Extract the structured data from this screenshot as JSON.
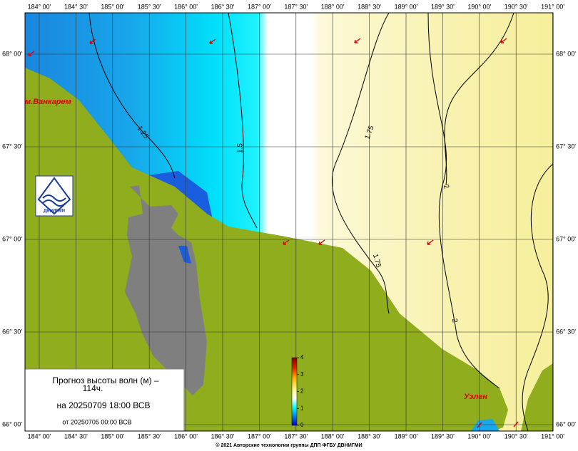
{
  "map": {
    "lon_labels": [
      "184° 00'",
      "184° 30'",
      "185° 00'",
      "185° 30'",
      "186° 00'",
      "186° 30'",
      "187° 00'",
      "187° 30'",
      "188° 00'",
      "188° 30'",
      "189° 00'",
      "189° 30'",
      "190° 00'",
      "190° 30'",
      "191° 00'"
    ],
    "lat_labels": [
      "68° 00'",
      "67° 30'",
      "67° 00'",
      "66° 30'",
      "66° 00'"
    ],
    "places": [
      "м.Ванкарем",
      "Уэлен"
    ],
    "contours": [
      "1.25",
      "1.5",
      "1.75",
      "2",
      "1.75",
      "2"
    ],
    "legend": {
      "title": "Прогноз высоты волн (м) –",
      "lead": "114ч.",
      "valid": "на 20250709 18:00 ВСВ",
      "issued": "от 20250705 00:00 ВСВ"
    },
    "colorbar": {
      "ticks": [
        0,
        1,
        2,
        3,
        4
      ]
    },
    "logo": "ДВНИГМИ",
    "copyright": "© 2021 Авторские технологии группы ДПП ФГБУ ДВНИГМИ"
  }
}
